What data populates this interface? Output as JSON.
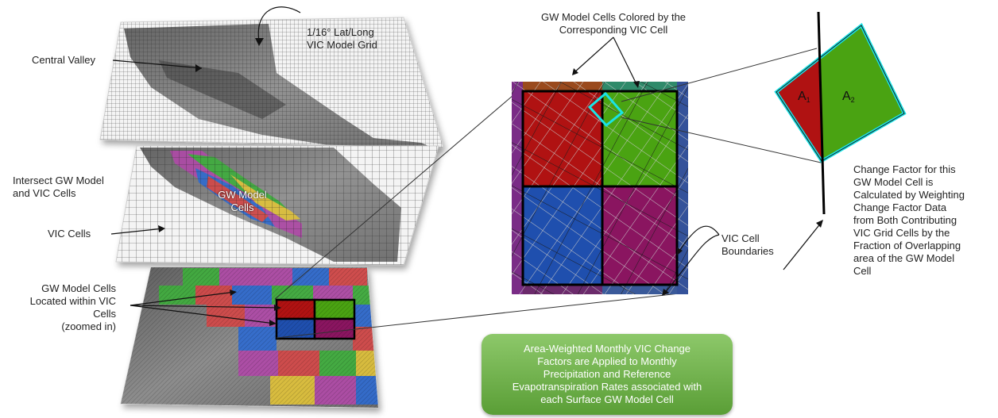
{
  "labels": {
    "vic_grid": "1/16° Lat/Long\nVIC Model Grid",
    "central_valley": "Central Valley",
    "intersect": "Intersect  GW Model\nand VIC Cells",
    "gw_model_cells_map": "GW Model\nCells",
    "vic_cells": "VIC Cells",
    "located_within": "GW Model Cells\nLocated within VIC\nCells\n(zoomed in)",
    "colored_by": "GW Model Cells Colored by the\nCorresponding VIC Cell",
    "vic_boundaries": "VIC Cell\nBoundaries",
    "change_factor": "Change Factor for this\nGW Model Cell is\nCalculated by Weighting\nChange Factor Data\nfrom Both Contributing\nVIC Grid Cells by the\nFraction of Overlapping\narea of the GW Model\nCell",
    "a1_letter": "A",
    "a1_sub": "1",
    "a2_letter": "A",
    "a2_sub": "2"
  },
  "callout": {
    "text": "Area-Weighted Monthly  VIC Change\nFactors are Applied to Monthly\nPrecipitation and Reference\nEvapotranspiration Rates associated with\neach Surface GW Model Cell"
  },
  "colors": {
    "red": "#b01212",
    "green": "#4aa312",
    "blue": "#1f4fae",
    "purple": "#8a1560",
    "cyan": "#19e3e6",
    "callout_green": "#6aaf45",
    "terrain": "#7a7a7a"
  }
}
